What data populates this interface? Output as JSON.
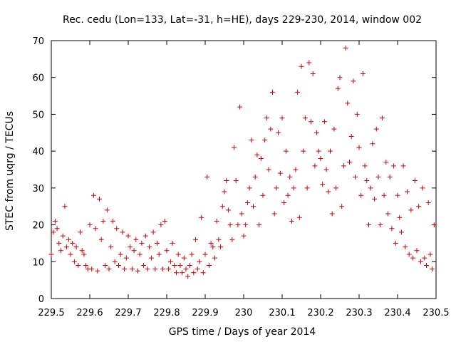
{
  "chart_data": {
    "type": "scatter",
    "title": "Rec. cedu (Lon=133, Lat=-31, h=HE), days 229-230, 2014, window 002",
    "xlabel": "GPS time / Days of year 2014",
    "ylabel": "STEC from uqrg / TECUs",
    "xlim": [
      229.5,
      230.5
    ],
    "ylim": [
      0,
      70
    ],
    "xticks": [
      "229.5",
      "229.6",
      "229.7",
      "229.8",
      "229.9",
      "230",
      "230.1",
      "230.2",
      "230.3",
      "230.4",
      "230.5"
    ],
    "yticks": [
      "0",
      "10",
      "20",
      "30",
      "40",
      "50",
      "60",
      "70"
    ],
    "grid": false,
    "marker": "+",
    "color": "#cc0000",
    "series": [
      {
        "name": "",
        "points": [
          [
            229.5,
            12
          ],
          [
            229.505,
            18
          ],
          [
            229.51,
            21
          ],
          [
            229.515,
            19
          ],
          [
            229.52,
            15
          ],
          [
            229.525,
            13
          ],
          [
            229.53,
            17
          ],
          [
            229.535,
            25
          ],
          [
            229.54,
            14
          ],
          [
            229.545,
            16
          ],
          [
            229.55,
            12
          ],
          [
            229.555,
            15
          ],
          [
            229.56,
            10
          ],
          [
            229.565,
            14
          ],
          [
            229.57,
            9
          ],
          [
            229.575,
            18
          ],
          [
            229.58,
            13
          ],
          [
            229.585,
            12
          ],
          [
            229.59,
            9
          ],
          [
            229.595,
            8
          ],
          [
            229.6,
            20
          ],
          [
            229.605,
            8
          ],
          [
            229.61,
            28
          ],
          [
            229.615,
            19
          ],
          [
            229.62,
            7.5
          ],
          [
            229.625,
            27
          ],
          [
            229.63,
            16
          ],
          [
            229.635,
            21
          ],
          [
            229.64,
            9
          ],
          [
            229.645,
            24
          ],
          [
            229.65,
            8
          ],
          [
            229.655,
            14
          ],
          [
            229.66,
            21
          ],
          [
            229.665,
            10
          ],
          [
            229.67,
            19
          ],
          [
            229.675,
            9
          ],
          [
            229.68,
            12
          ],
          [
            229.685,
            18
          ],
          [
            229.69,
            8
          ],
          [
            229.695,
            11
          ],
          [
            229.7,
            17
          ],
          [
            229.705,
            14
          ],
          [
            229.71,
            8
          ],
          [
            229.715,
            13
          ],
          [
            229.72,
            16
          ],
          [
            229.725,
            7.5
          ],
          [
            229.73,
            12
          ],
          [
            229.735,
            15
          ],
          [
            229.74,
            9
          ],
          [
            229.745,
            17
          ],
          [
            229.75,
            8
          ],
          [
            229.755,
            14
          ],
          [
            229.76,
            11
          ],
          [
            229.765,
            18
          ],
          [
            229.77,
            8
          ],
          [
            229.775,
            15
          ],
          [
            229.78,
            12
          ],
          [
            229.785,
            20
          ],
          [
            229.79,
            8
          ],
          [
            229.795,
            21
          ],
          [
            229.8,
            13
          ],
          [
            229.805,
            8
          ],
          [
            229.81,
            10
          ],
          [
            229.815,
            15
          ],
          [
            229.82,
            9
          ],
          [
            229.825,
            7
          ],
          [
            229.83,
            12
          ],
          [
            229.835,
            9
          ],
          [
            229.84,
            7
          ],
          [
            229.845,
            11
          ],
          [
            229.85,
            8
          ],
          [
            229.855,
            6
          ],
          [
            229.86,
            9
          ],
          [
            229.865,
            12
          ],
          [
            229.87,
            7
          ],
          [
            229.875,
            16
          ],
          [
            229.88,
            8
          ],
          [
            229.885,
            10
          ],
          [
            229.89,
            22
          ],
          [
            229.895,
            7
          ],
          [
            229.9,
            12
          ],
          [
            229.905,
            33
          ],
          [
            229.91,
            9
          ],
          [
            229.915,
            15
          ],
          [
            229.92,
            14
          ],
          [
            229.925,
            11
          ],
          [
            229.93,
            21
          ],
          [
            229.935,
            16
          ],
          [
            229.94,
            14
          ],
          [
            229.945,
            25
          ],
          [
            229.95,
            29
          ],
          [
            229.955,
            32
          ],
          [
            229.96,
            24
          ],
          [
            229.965,
            20
          ],
          [
            229.97,
            16
          ],
          [
            229.975,
            41
          ],
          [
            229.98,
            32
          ],
          [
            229.985,
            20
          ],
          [
            229.99,
            52
          ],
          [
            229.995,
            23
          ],
          [
            230.0,
            17
          ],
          [
            230.005,
            20
          ],
          [
            230.01,
            26
          ],
          [
            230.015,
            30
          ],
          [
            230.02,
            43
          ],
          [
            230.025,
            25
          ],
          [
            230.03,
            33
          ],
          [
            230.035,
            39
          ],
          [
            230.04,
            20
          ],
          [
            230.045,
            38
          ],
          [
            230.05,
            28
          ],
          [
            230.055,
            43
          ],
          [
            230.06,
            49
          ],
          [
            230.065,
            35
          ],
          [
            230.07,
            46
          ],
          [
            230.075,
            56
          ],
          [
            230.08,
            23
          ],
          [
            230.085,
            30
          ],
          [
            230.09,
            45
          ],
          [
            230.095,
            34
          ],
          [
            230.1,
            49
          ],
          [
            230.105,
            26
          ],
          [
            230.11,
            40
          ],
          [
            230.115,
            28
          ],
          [
            230.12,
            33
          ],
          [
            230.125,
            21
          ],
          [
            230.13,
            30
          ],
          [
            230.135,
            35
          ],
          [
            230.14,
            56
          ],
          [
            230.145,
            22
          ],
          [
            230.15,
            63
          ],
          [
            230.155,
            40
          ],
          [
            230.16,
            49
          ],
          [
            230.165,
            30
          ],
          [
            230.17,
            64
          ],
          [
            230.175,
            48
          ],
          [
            230.18,
            61
          ],
          [
            230.185,
            36
          ],
          [
            230.19,
            45
          ],
          [
            230.195,
            40
          ],
          [
            230.2,
            38
          ],
          [
            230.205,
            31
          ],
          [
            230.21,
            48
          ],
          [
            230.215,
            35
          ],
          [
            230.22,
            29
          ],
          [
            230.225,
            40
          ],
          [
            230.23,
            23
          ],
          [
            230.235,
            46
          ],
          [
            230.24,
            30
          ],
          [
            230.245,
            57
          ],
          [
            230.25,
            60
          ],
          [
            230.255,
            25
          ],
          [
            230.26,
            36
          ],
          [
            230.265,
            68
          ],
          [
            230.27,
            53
          ],
          [
            230.275,
            37
          ],
          [
            230.28,
            44
          ],
          [
            230.285,
            59
          ],
          [
            230.29,
            33
          ],
          [
            230.295,
            50
          ],
          [
            230.3,
            41
          ],
          [
            230.305,
            28
          ],
          [
            230.31,
            61
          ],
          [
            230.315,
            36
          ],
          [
            230.32,
            32
          ],
          [
            230.325,
            20
          ],
          [
            230.33,
            30
          ],
          [
            230.335,
            42
          ],
          [
            230.34,
            27
          ],
          [
            230.345,
            46
          ],
          [
            230.35,
            33
          ],
          [
            230.355,
            20
          ],
          [
            230.36,
            49
          ],
          [
            230.365,
            28
          ],
          [
            230.37,
            37
          ],
          [
            230.375,
            23
          ],
          [
            230.38,
            33
          ],
          [
            230.385,
            19
          ],
          [
            230.39,
            36
          ],
          [
            230.395,
            15
          ],
          [
            230.4,
            28
          ],
          [
            230.405,
            22
          ],
          [
            230.41,
            18
          ],
          [
            230.415,
            36
          ],
          [
            230.42,
            14
          ],
          [
            230.425,
            29
          ],
          [
            230.43,
            12
          ],
          [
            230.435,
            24
          ],
          [
            230.44,
            11
          ],
          [
            230.445,
            32
          ],
          [
            230.45,
            13
          ],
          [
            230.455,
            25
          ],
          [
            230.46,
            10
          ],
          [
            230.465,
            30
          ],
          [
            230.47,
            11
          ],
          [
            230.475,
            9
          ],
          [
            230.48,
            26
          ],
          [
            230.485,
            12
          ],
          [
            230.49,
            8
          ],
          [
            230.495,
            20
          ]
        ]
      }
    ]
  }
}
